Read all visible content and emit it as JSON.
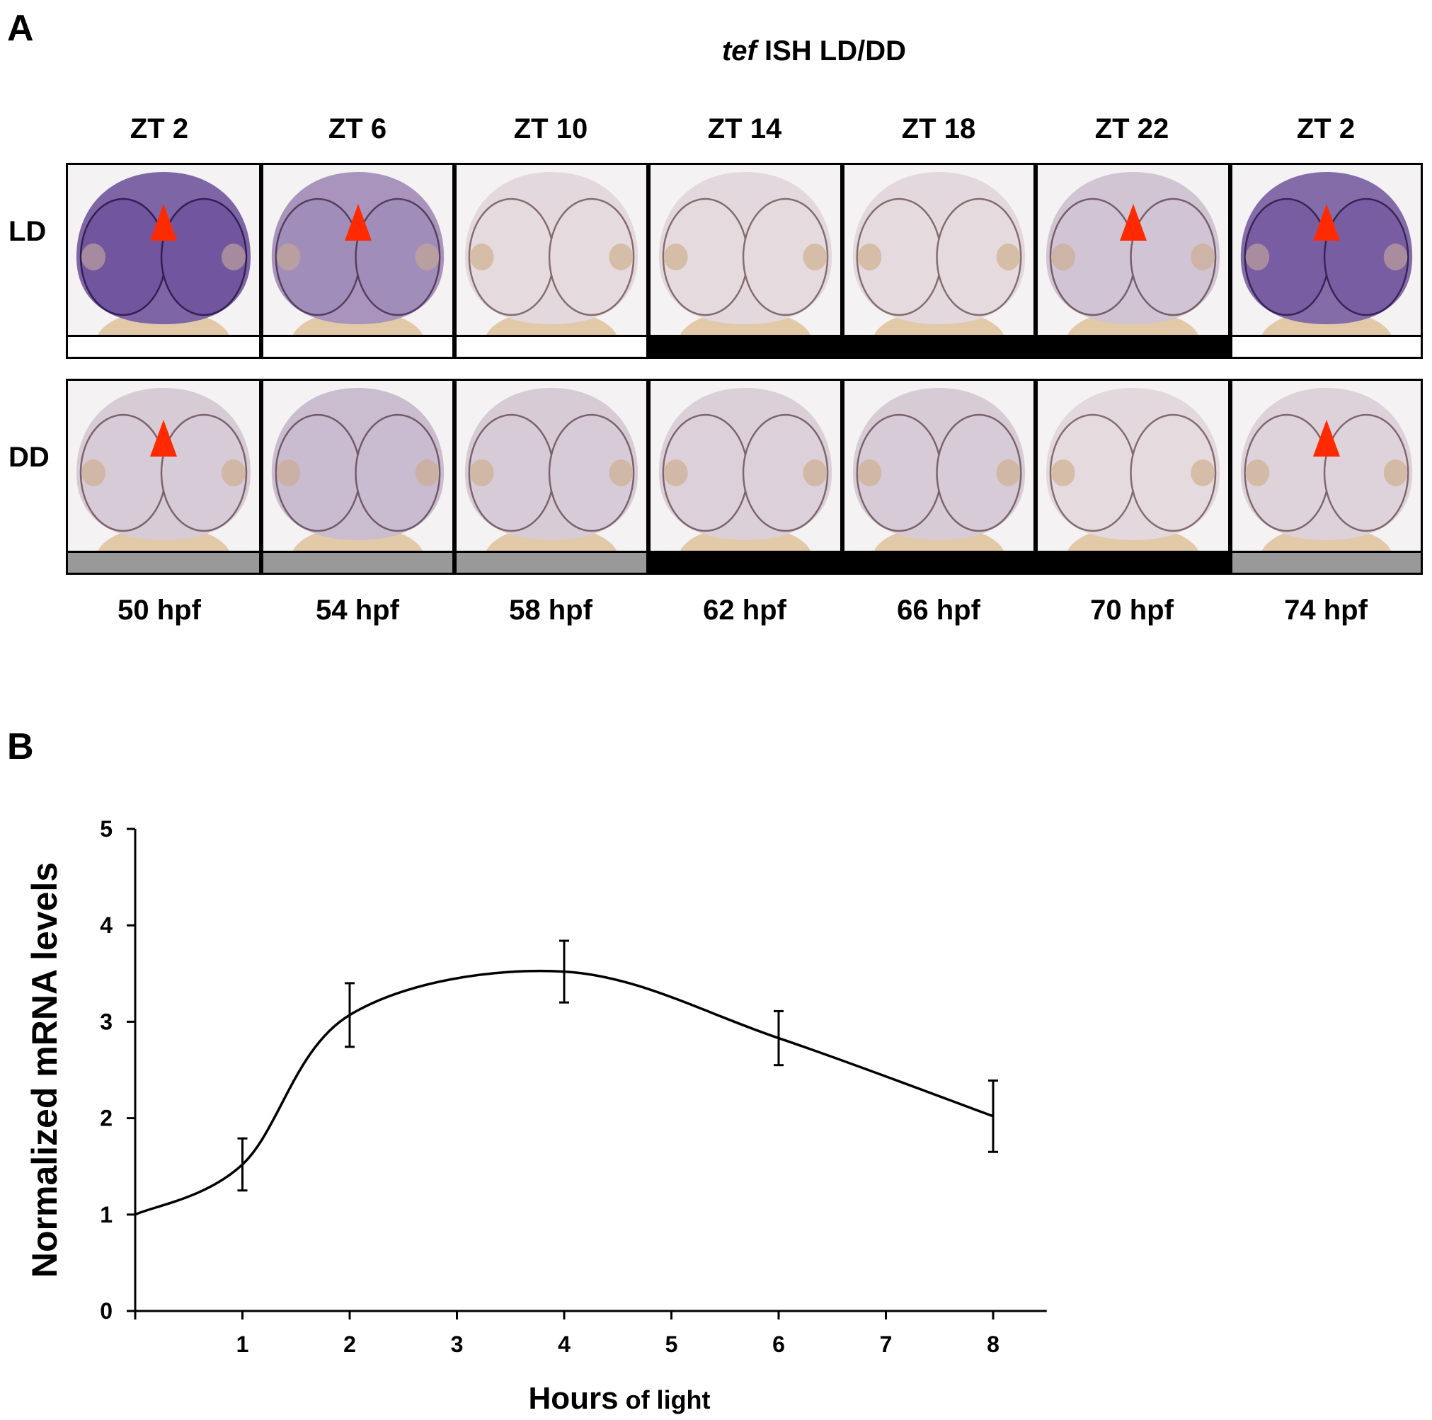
{
  "panel_a": {
    "label": "A",
    "title_gene": "tef",
    "title_rest": " ISH LD/DD",
    "timepoints": [
      "ZT 2",
      "ZT 6",
      "ZT 10",
      "ZT 14",
      "ZT 18",
      "ZT 22",
      "ZT 2"
    ],
    "hpf": [
      "50 hpf",
      "54 hpf",
      "58 hpf",
      "62 hpf",
      "66 hpf",
      "70 hpf",
      "74 hpf"
    ],
    "rows": [
      {
        "label": "LD",
        "stain": [
          0.9,
          0.55,
          0.05,
          0.05,
          0.05,
          0.2,
          0.85
        ],
        "arrow": [
          true,
          true,
          false,
          false,
          false,
          true,
          true
        ],
        "light_bar": [
          "light",
          "light",
          "light",
          "dark",
          "dark",
          "dark",
          "light"
        ]
      },
      {
        "label": "DD",
        "stain": [
          0.15,
          0.25,
          0.15,
          0.12,
          0.15,
          0.05,
          0.1
        ],
        "arrow": [
          true,
          false,
          false,
          false,
          false,
          false,
          true
        ],
        "light_bar": [
          "subjective",
          "subjective",
          "subjective",
          "dark",
          "dark",
          "dark",
          "subjective"
        ]
      }
    ],
    "colors": {
      "arrow": "#ff2a00",
      "stain": "#4b2a8a",
      "light": "#ffffff",
      "dark": "#000000",
      "subjective": "#999999"
    }
  },
  "panel_b": {
    "label": "B",
    "chart_data": {
      "type": "line",
      "xlabel_main": "Hours",
      "xlabel_sub": " of light",
      "ylabel": "Normalized mRNA levels",
      "xlim": [
        0,
        8.5
      ],
      "ylim": [
        0,
        5
      ],
      "xticks": [
        1,
        2,
        3,
        4,
        5,
        6,
        7,
        8
      ],
      "yticks": [
        0,
        1,
        2,
        3,
        4,
        5
      ],
      "points": [
        {
          "x": 0,
          "y": 1.0
        },
        {
          "x": 1,
          "y": 1.52,
          "err": 0.27
        },
        {
          "x": 2,
          "y": 3.07,
          "err": 0.33
        },
        {
          "x": 4,
          "y": 3.52,
          "err": 0.32
        },
        {
          "x": 6,
          "y": 2.83,
          "err": 0.28
        },
        {
          "x": 8,
          "y": 2.02,
          "err": 0.37
        }
      ],
      "grid": false,
      "legend": "none"
    }
  }
}
